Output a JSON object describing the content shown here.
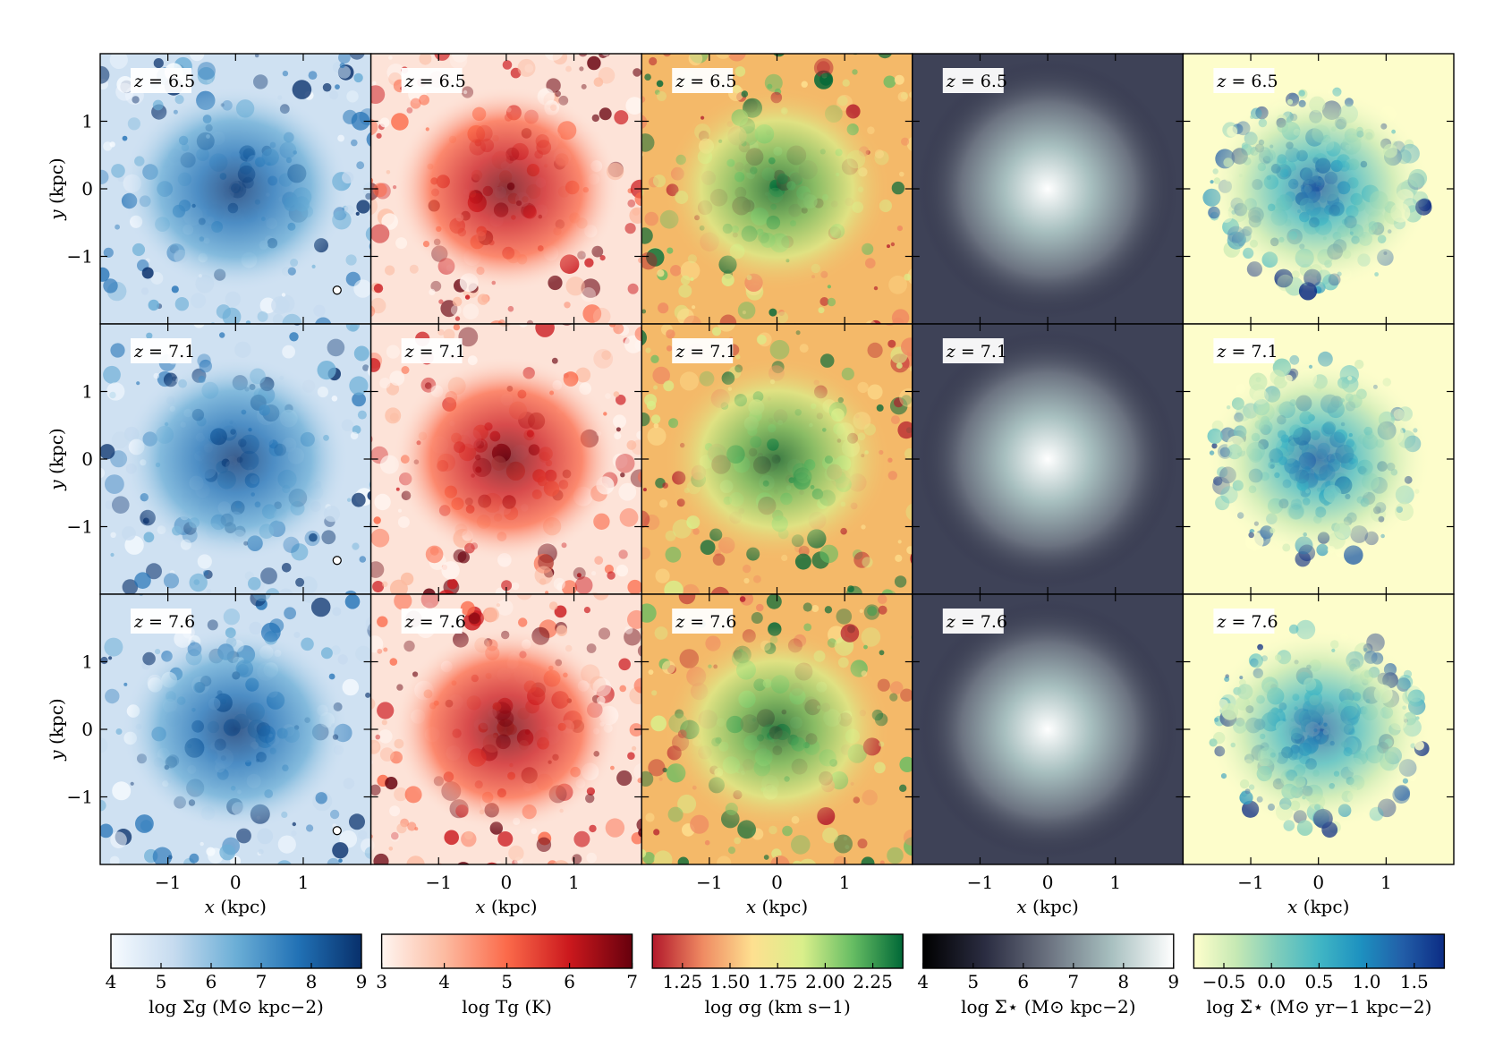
{
  "figure": {
    "rows": [
      {
        "label": "z = 6.5",
        "z": "6.5",
        "marker": true
      },
      {
        "label": "z = 7.1",
        "z": "7.1",
        "marker": true
      },
      {
        "label": "z = 7.6",
        "z": "7.6",
        "marker": true
      }
    ],
    "columns": [
      {
        "id": "gas-density",
        "cmap": [
          "#f7fbff",
          "#c6dbef",
          "#6baed6",
          "#2171b5",
          "#08306b"
        ],
        "background": "#cfe1f2"
      },
      {
        "id": "gas-temperature",
        "cmap": [
          "#fff5f0",
          "#fcbba1",
          "#fb6a4a",
          "#cb181d",
          "#67000d"
        ],
        "background": "#fde3d8"
      },
      {
        "id": "velocity-dispersion",
        "cmap": [
          "#b2182b",
          "#ef8a62",
          "#fee090",
          "#d9ef8b",
          "#66bd63",
          "#006837"
        ],
        "background": "#f4b969"
      },
      {
        "id": "stellar-density",
        "cmap": [
          "#000000",
          "#2b2d42",
          "#6b7280",
          "#a7bfbf",
          "#ffffff"
        ],
        "background": "#3e4257"
      },
      {
        "id": "sfr-density",
        "cmap": [
          "#ffffcc",
          "#c7e9b4",
          "#7fcdbb",
          "#41b6c4",
          "#1d91c0",
          "#225ea8",
          "#0c2c84"
        ],
        "background": "#fdfdcb"
      }
    ],
    "x_axis_label_var": "x",
    "x_axis_label_unit": "(kpc)",
    "y_axis_label_var": "y",
    "y_axis_label_unit": "(kpc)",
    "x_ticks": [
      "−1",
      "0",
      "1"
    ],
    "y_ticks": [
      "1",
      "0",
      "−1"
    ]
  },
  "colorbars": [
    {
      "ticks": [
        "4",
        "5",
        "6",
        "7",
        "8",
        "9"
      ],
      "title": "log Σg (M⊙ kpc−2)"
    },
    {
      "ticks": [
        "3",
        "4",
        "5",
        "6",
        "7"
      ],
      "title": "log Tg (K)"
    },
    {
      "ticks": [
        "1.25",
        "1.50",
        "1.75",
        "2.00",
        "2.25"
      ],
      "title": "log σg (km s−1)"
    },
    {
      "ticks": [
        "4",
        "5",
        "6",
        "7",
        "8",
        "9"
      ],
      "title": "log Σ⋆ (M⊙ kpc−2)"
    },
    {
      "ticks": [
        "−0.5",
        "0.0",
        "0.5",
        "1.0",
        "1.5"
      ],
      "title": "log Σ̇⋆ (M⊙ yr−1 kpc−2)"
    }
  ]
}
